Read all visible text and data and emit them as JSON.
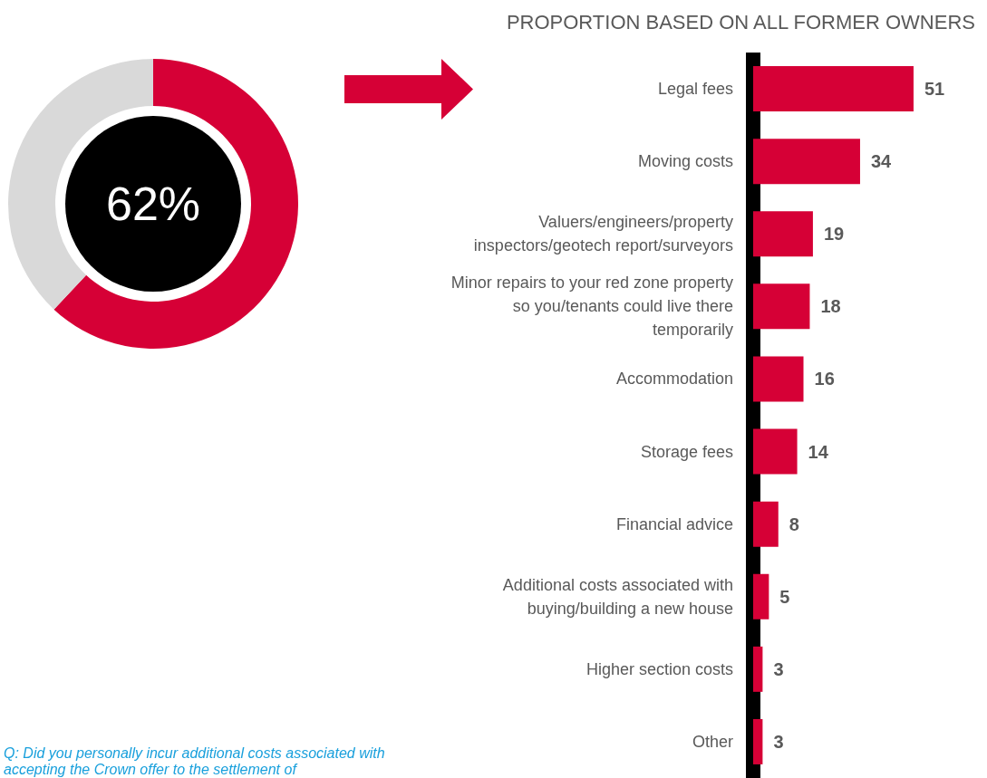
{
  "chart_data": [
    {
      "type": "donut",
      "categories": [
        null,
        null
      ],
      "values": [
        62,
        38
      ],
      "colors": [
        "#d60036",
        "#d9d9d9"
      ],
      "annotations": [
        "62%",
        "Q: Did you personally incur additional costs associated with accepting the Crown offer to the settlement of"
      ]
    },
    {
      "type": "bar",
      "orientation": "horizontal",
      "title": "PROPORTION BASED ON ALL FORMER OWNERS",
      "categories": [
        "Legal fees",
        "Moving costs",
        "Valuers/engineers/property\ninspectors/geotech report/surveyors",
        "Minor repairs to your red zone property\nso you/tenants could live there\ntemporarily",
        "Accommodation",
        "Storage fees",
        "Financial advice",
        "Additional costs associated with\nbuying/building a new house",
        "Higher section costs",
        "Other"
      ],
      "values": [
        51,
        34,
        19,
        18,
        16,
        14,
        8,
        5,
        3,
        3
      ],
      "color": "#d60036",
      "data_labels": true
    }
  ]
}
